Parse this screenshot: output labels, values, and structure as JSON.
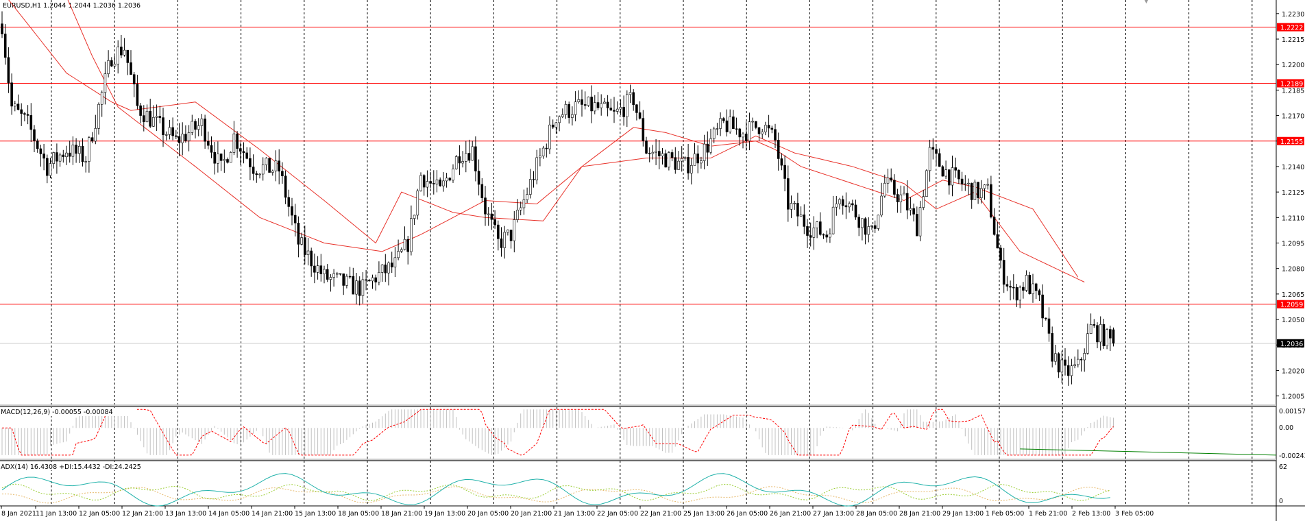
{
  "main_pane": {
    "header": "EURUSD,H1  1.2044 1.2044 1.2036 1.2036",
    "price_scale": [
      "1.2230",
      "1.2215",
      "1.2200",
      "1.2185",
      "1.2170",
      "1.2155",
      "1.2140",
      "1.2125",
      "1.2110",
      "1.2095",
      "1.2080",
      "1.2065",
      "1.2050",
      "1.2035",
      "1.2020",
      "1.2005"
    ],
    "current_price": "1.2036",
    "hlines": [
      {
        "label": "1.2222",
        "value": 1.2222
      },
      {
        "label": "1.2189",
        "value": 1.2189
      },
      {
        "label": "1.2155",
        "value": 1.2155
      },
      {
        "label": "1.2059",
        "value": 1.2059
      }
    ],
    "colors": {
      "level_line": "#ff0000",
      "ma": "#e8322a",
      "candle": "#000000",
      "current": "#c0c0c0"
    }
  },
  "macd_pane": {
    "header": "MACD(12,26,9) -0.00055 -0.00084",
    "scale": [
      "0.00157",
      "0.00",
      "-0.00243"
    ],
    "colors": {
      "histogram": "#c0c0c0",
      "signal": "#ff0000",
      "trendline": "#008000"
    }
  },
  "adx_pane": {
    "header": "ADX(14) 16.4308 +DI:15.4432 -DI:24.2425",
    "scale": [
      "62",
      "0"
    ],
    "colors": {
      "adx": "#20b2aa",
      "plus_di": "#9acd32",
      "minus_di": "#e6b86a"
    }
  },
  "time_axis": [
    "8 Jan 2021",
    "11 Jan 13:00",
    "12 Jan 05:00",
    "12 Jan 21:00",
    "13 Jan 13:00",
    "14 Jan 05:00",
    "14 Jan 21:00",
    "15 Jan 13:00",
    "18 Jan 05:00",
    "18 Jan 21:00",
    "19 Jan 13:00",
    "20 Jan 05:00",
    "20 Jan 21:00",
    "21 Jan 13:00",
    "22 Jan 05:00",
    "22 Jan 21:00",
    "25 Jan 13:00",
    "26 Jan 05:00",
    "26 Jan 21:00",
    "27 Jan 13:00",
    "28 Jan 05:00",
    "28 Jan 21:00",
    "29 Jan 13:00",
    "1 Feb 05:00",
    "1 Feb 21:00",
    "2 Feb 13:00",
    "3 Feb 05:00"
  ],
  "chart_data": {
    "type": "candlestick",
    "symbol": "EURUSD",
    "timeframe": "H1",
    "ylim": [
      1.2,
      1.2238
    ],
    "ohlc_last": {
      "open": 1.2044,
      "high": 1.2044,
      "low": 1.2036,
      "close": 1.2036
    },
    "close_path": [
      [
        0,
        1.2224
      ],
      [
        3,
        1.2175
      ],
      [
        8,
        1.2165
      ],
      [
        14,
        1.214
      ],
      [
        20,
        1.215
      ],
      [
        26,
        1.2145
      ],
      [
        34,
        1.2205
      ],
      [
        38,
        1.221
      ],
      [
        42,
        1.2175
      ],
      [
        48,
        1.2165
      ],
      [
        54,
        1.2155
      ],
      [
        62,
        1.2165
      ],
      [
        68,
        1.2138
      ],
      [
        72,
        1.2158
      ],
      [
        78,
        1.214
      ],
      [
        86,
        1.2138
      ],
      [
        92,
        1.2095
      ],
      [
        100,
        1.2075
      ],
      [
        108,
        1.207
      ],
      [
        112,
        1.2068
      ],
      [
        116,
        1.2075
      ],
      [
        122,
        1.2082
      ],
      [
        126,
        1.2095
      ],
      [
        130,
        1.2135
      ],
      [
        136,
        1.2125
      ],
      [
        142,
        1.2148
      ],
      [
        146,
        1.215
      ],
      [
        150,
        1.2115
      ],
      [
        154,
        1.2095
      ],
      [
        158,
        1.21
      ],
      [
        162,
        1.212
      ],
      [
        166,
        1.214
      ],
      [
        172,
        1.217
      ],
      [
        178,
        1.2175
      ],
      [
        184,
        1.2175
      ],
      [
        190,
        1.217
      ],
      [
        196,
        1.218
      ],
      [
        200,
        1.215
      ],
      [
        206,
        1.2145
      ],
      [
        212,
        1.214
      ],
      [
        218,
        1.215
      ],
      [
        224,
        1.2165
      ],
      [
        230,
        1.216
      ],
      [
        236,
        1.2165
      ],
      [
        240,
        1.2155
      ],
      [
        244,
        1.2118
      ],
      [
        250,
        1.2105
      ],
      [
        256,
        1.21
      ],
      [
        260,
        1.2125
      ],
      [
        266,
        1.211
      ],
      [
        270,
        1.21
      ],
      [
        274,
        1.213
      ],
      [
        280,
        1.212
      ],
      [
        284,
        1.2105
      ],
      [
        288,
        1.2148
      ],
      [
        294,
        1.2135
      ],
      [
        298,
        1.213
      ],
      [
        302,
        1.2125
      ],
      [
        306,
        1.2125
      ],
      [
        310,
        1.208
      ],
      [
        314,
        1.2065
      ],
      [
        318,
        1.2072
      ],
      [
        322,
        1.206
      ],
      [
        326,
        1.203
      ],
      [
        330,
        1.2018
      ],
      [
        334,
        1.2022
      ],
      [
        338,
        1.2045
      ],
      [
        342,
        1.204
      ],
      [
        345,
        1.2036
      ]
    ],
    "ma_fast": [
      [
        0,
        1.2243
      ],
      [
        20,
        1.2195
      ],
      [
        34,
        1.2178
      ],
      [
        40,
        1.2173
      ],
      [
        60,
        1.2178
      ],
      [
        80,
        1.215
      ],
      [
        100,
        1.212
      ],
      [
        116,
        1.2095
      ],
      [
        124,
        1.2125
      ],
      [
        140,
        1.2113
      ],
      [
        150,
        1.211
      ],
      [
        168,
        1.2108
      ],
      [
        180,
        1.214
      ],
      [
        196,
        1.2163
      ],
      [
        206,
        1.216
      ],
      [
        220,
        1.2152
      ],
      [
        234,
        1.2155
      ],
      [
        240,
        1.215
      ],
      [
        248,
        1.214
      ],
      [
        264,
        1.213
      ],
      [
        280,
        1.212
      ],
      [
        292,
        1.2132
      ],
      [
        302,
        1.2128
      ],
      [
        320,
        1.2115
      ],
      [
        335,
        1.2072
      ]
    ],
    "ma_slow": [
      [
        0,
        1.2277
      ],
      [
        20,
        1.224
      ],
      [
        28,
        1.2205
      ],
      [
        36,
        1.2175
      ],
      [
        60,
        1.214
      ],
      [
        80,
        1.211
      ],
      [
        100,
        1.2095
      ],
      [
        118,
        1.209
      ],
      [
        130,
        1.21
      ],
      [
        150,
        1.212
      ],
      [
        166,
        1.2118
      ],
      [
        180,
        1.214
      ],
      [
        200,
        1.2145
      ],
      [
        220,
        1.2145
      ],
      [
        234,
        1.2158
      ],
      [
        246,
        1.2148
      ],
      [
        264,
        1.214
      ],
      [
        280,
        1.213
      ],
      [
        290,
        1.2115
      ],
      [
        302,
        1.2125
      ],
      [
        316,
        1.209
      ],
      [
        336,
        1.2072
      ]
    ],
    "macd_trendline": [
      [
        316,
        -0.0017
      ],
      [
        380,
        -0.0022
      ]
    ]
  }
}
